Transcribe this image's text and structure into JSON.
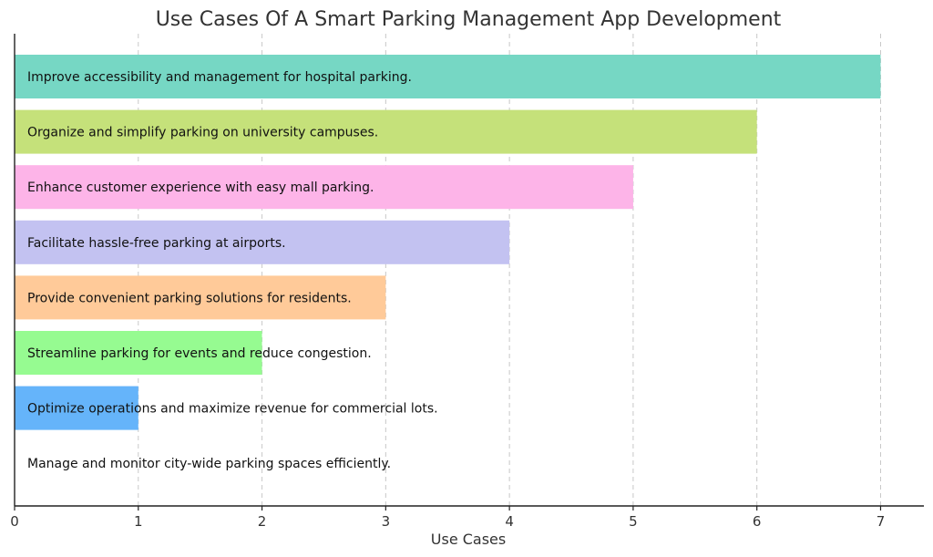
{
  "chart_data": {
    "type": "bar",
    "orientation": "horizontal",
    "title": "Use Cases Of A Smart Parking Management App Development",
    "xlabel": "Use Cases",
    "ylabel": "",
    "xlim": [
      0,
      7.35
    ],
    "xticks": [
      0,
      1,
      2,
      3,
      4,
      5,
      6,
      7
    ],
    "grid": "vertical dashed",
    "bars": [
      {
        "label": "Improve accessibility and management for hospital parking.",
        "value": 7,
        "color": "#76D7C4"
      },
      {
        "label": "Organize and simplify parking on university campuses.",
        "value": 6,
        "color": "#C5E17A"
      },
      {
        "label": "Enhance customer experience with easy mall parking.",
        "value": 5,
        "color": "#FDB4E8"
      },
      {
        "label": "Facilitate hassle-free parking at airports.",
        "value": 4,
        "color": "#C3C2F1"
      },
      {
        "label": "Provide convenient parking solutions for residents.",
        "value": 3,
        "color": "#FFCA99"
      },
      {
        "label": "Streamline parking for events and reduce congestion.",
        "value": 2,
        "color": "#96FB91"
      },
      {
        "label": "Optimize operations and maximize revenue for commercial lots.",
        "value": 1,
        "color": "#65B4FA"
      },
      {
        "label": "Manage and monitor city-wide parking spaces efficiently.",
        "value": 0,
        "color": "#FF8C8C"
      }
    ]
  }
}
